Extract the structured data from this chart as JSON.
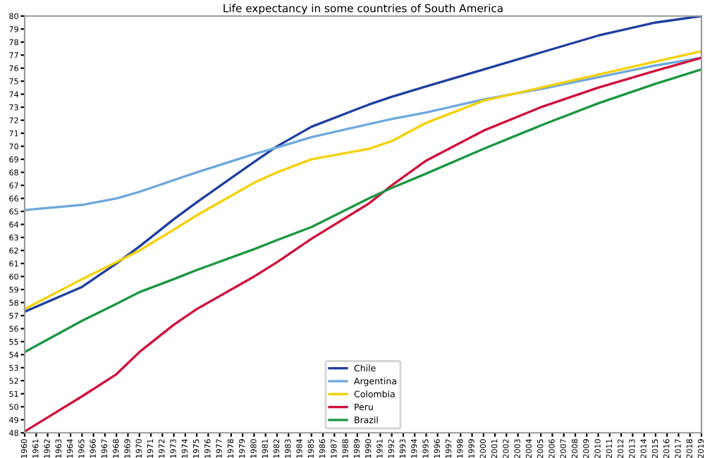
{
  "chart_data": {
    "type": "line",
    "title": "Life expectancy in some countries of South America",
    "x": [
      1960,
      1965,
      1968,
      1970,
      1973,
      1975,
      1980,
      1982,
      1985,
      1990,
      1992,
      1995,
      2000,
      2005,
      2010,
      2015,
      2019
    ],
    "series": [
      {
        "name": "Chile",
        "color": "#1f3fa0",
        "values": [
          57.3,
          59.2,
          61.0,
          62.3,
          64.4,
          65.7,
          68.8,
          70.0,
          71.5,
          73.2,
          73.8,
          74.6,
          75.9,
          77.2,
          78.5,
          79.5,
          80.0
        ]
      },
      {
        "name": "Argentina",
        "color": "#6fa8dc",
        "values": [
          65.1,
          65.5,
          66.0,
          66.5,
          67.4,
          68.0,
          69.4,
          69.9,
          70.7,
          71.7,
          72.1,
          72.6,
          73.6,
          74.4,
          75.3,
          76.2,
          76.8
        ]
      },
      {
        "name": "Colombia",
        "color": "#f5d000",
        "values": [
          57.5,
          59.8,
          61.1,
          62.0,
          63.6,
          64.7,
          67.2,
          68.0,
          69.0,
          69.8,
          70.4,
          71.8,
          73.5,
          74.5,
          75.5,
          76.5,
          77.3
        ]
      },
      {
        "name": "Peru",
        "color": "#d0103a",
        "values": [
          48.1,
          50.8,
          52.5,
          54.2,
          56.3,
          57.5,
          60.0,
          61.1,
          62.9,
          65.6,
          67.0,
          68.9,
          71.2,
          73.0,
          74.5,
          75.8,
          76.8
        ]
      },
      {
        "name": "Brazil",
        "color": "#1a9641",
        "values": [
          54.2,
          56.6,
          57.9,
          58.8,
          59.8,
          60.5,
          62.1,
          62.8,
          63.8,
          66.0,
          66.8,
          67.9,
          69.8,
          71.6,
          73.3,
          74.8,
          75.9
        ]
      }
    ],
    "xlim": [
      1960,
      2019
    ],
    "xticks": [
      1960,
      1961,
      1962,
      1963,
      1964,
      1965,
      1966,
      1967,
      1968,
      1969,
      1970,
      1971,
      1972,
      1973,
      1974,
      1975,
      1976,
      1977,
      1978,
      1979,
      1980,
      1981,
      1982,
      1983,
      1984,
      1985,
      1986,
      1987,
      1988,
      1989,
      1990,
      1991,
      1992,
      1993,
      1994,
      1995,
      1996,
      1997,
      1998,
      1999,
      2000,
      2001,
      2002,
      2003,
      2004,
      2005,
      2006,
      2007,
      2008,
      2009,
      2010,
      2011,
      2012,
      2013,
      2014,
      2015,
      2016,
      2017,
      2018,
      2019
    ],
    "ylim": [
      48,
      80
    ],
    "yticks": [
      48,
      49,
      50,
      51,
      52,
      53,
      54,
      55,
      56,
      57,
      58,
      59,
      60,
      61,
      62,
      63,
      64,
      65,
      66,
      67,
      68,
      69,
      70,
      71,
      72,
      73,
      74,
      75,
      76,
      77,
      78,
      79,
      80
    ],
    "legend": "bottom",
    "grid": false,
    "line_style": "solid",
    "marker": "none"
  }
}
